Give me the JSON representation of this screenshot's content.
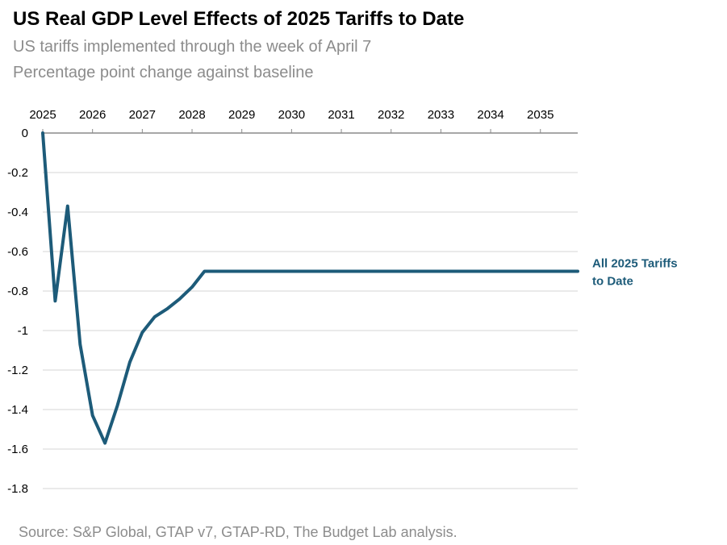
{
  "chart_data": {
    "type": "line",
    "title": "US Real GDP Level Effects of 2025 Tariffs to Date",
    "subtitle": [
      "US tariffs implemented through the week of April 7",
      "Percentage point change against baseline"
    ],
    "source": "Source: S&P Global, GTAP v7, GTAP-RD, The Budget Lab analysis.",
    "xlabel": "",
    "ylabel": "",
    "x_ticks": [
      "2025",
      "2026",
      "2027",
      "2028",
      "2029",
      "2030",
      "2031",
      "2032",
      "2033",
      "2034",
      "2035"
    ],
    "xlim": [
      2025,
      2035.75
    ],
    "y_ticks": [
      0,
      -0.2,
      -0.4,
      -0.6,
      -0.8,
      -1,
      -1.2,
      -1.4,
      -1.6,
      -1.8
    ],
    "y_tick_labels": [
      "0",
      "-0.2",
      "-0.4",
      "-0.6",
      "-0.8",
      "-1",
      "-1.2",
      "-1.4",
      "-1.6",
      "-1.8"
    ],
    "ylim": [
      -1.8,
      0
    ],
    "grid": true,
    "x_axis_position": "top",
    "series": [
      {
        "name": "All 2025 Tariffs to Date",
        "label_lines": [
          "All 2025 Tariffs",
          "to Date"
        ],
        "color": "#1d5b79",
        "x": [
          2025.0,
          2025.25,
          2025.5,
          2025.75,
          2026.0,
          2026.25,
          2026.5,
          2026.75,
          2027.0,
          2027.25,
          2027.5,
          2027.75,
          2028.0,
          2028.25,
          2028.5,
          2029,
          2030,
          2031,
          2032,
          2033,
          2034,
          2035,
          2035.75
        ],
        "y": [
          0.0,
          -0.85,
          -0.37,
          -1.07,
          -1.43,
          -1.57,
          -1.38,
          -1.16,
          -1.01,
          -0.93,
          -0.89,
          -0.84,
          -0.78,
          -0.7,
          -0.7,
          -0.7,
          -0.7,
          -0.7,
          -0.7,
          -0.7,
          -0.7,
          -0.7,
          -0.7
        ]
      }
    ]
  }
}
